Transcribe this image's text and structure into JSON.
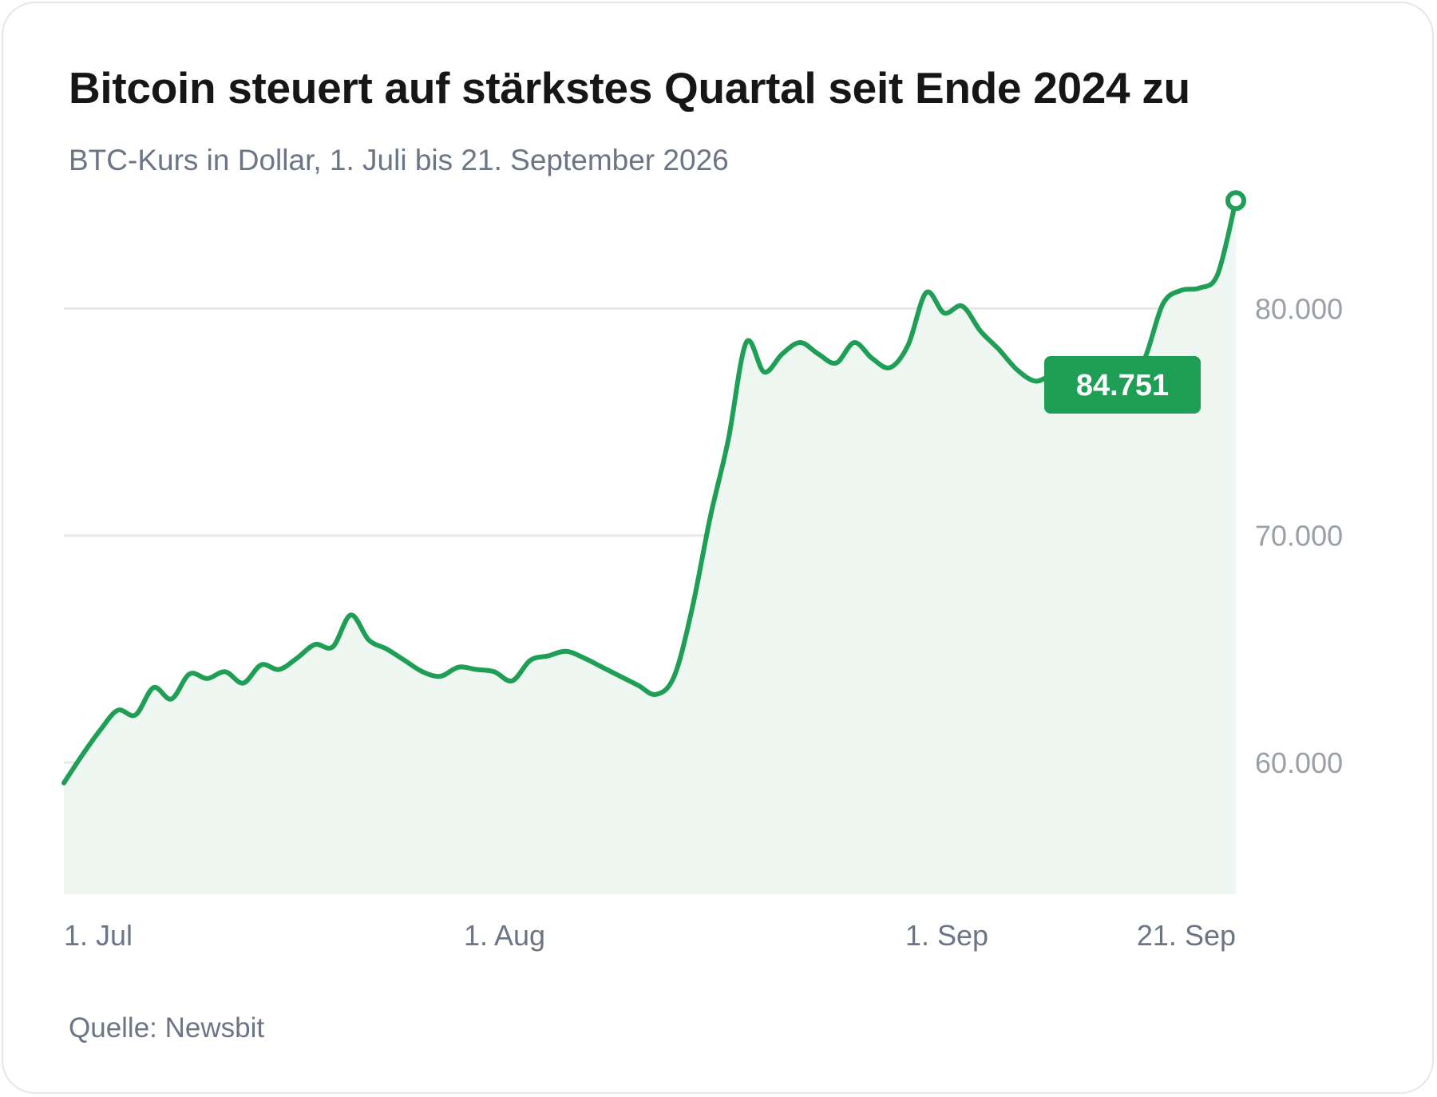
{
  "title": "Bitcoin steuert auf stärkstes Quartal seit Ende 2024 zu",
  "subtitle": "BTC-Kurs in Dollar, 1. Juli bis 21. September 2026",
  "source": "Quelle: Newsbit",
  "colors": {
    "line": "#1f9e55",
    "area": "#eef7f1",
    "grid": "#e8e8e8",
    "badge": "#1f9e55"
  },
  "chart_data": {
    "type": "area",
    "title": "Bitcoin steuert auf stärkstes Quartal seit Ende 2024 zu",
    "subtitle": "BTC-Kurs in Dollar, 1. Juli bis 21. September 2026",
    "xlabel": "",
    "ylabel": "",
    "x_ticks": [
      {
        "label": "1. Jul",
        "date": "2026-07-01"
      },
      {
        "label": "1. Aug",
        "date": "2026-08-01"
      },
      {
        "label": "1. Sep",
        "date": "2026-09-01"
      },
      {
        "label": "21. Sep",
        "date": "2026-09-21"
      }
    ],
    "y_ticks": [
      {
        "label": "60.000",
        "value": 60000
      },
      {
        "label": "70.000",
        "value": 70000
      },
      {
        "label": "80.000",
        "value": 80000
      }
    ],
    "ylim": [
      54200,
      85500
    ],
    "xlim": [
      "2026-07-01",
      "2026-09-21"
    ],
    "grid": "horizontal",
    "last_value_label": "84.751",
    "series": [
      {
        "values": [
          [
            "2026-07-01",
            59100
          ],
          [
            "2026-07-02",
            60300
          ],
          [
            "2026-07-03",
            61400
          ],
          [
            "2026-07-04",
            62300
          ],
          [
            "2026-07-05",
            62100
          ],
          [
            "2026-07-06",
            63300
          ],
          [
            "2026-07-07",
            62800
          ],
          [
            "2026-07-08",
            63900
          ],
          [
            "2026-07-09",
            63700
          ],
          [
            "2026-07-10",
            64000
          ],
          [
            "2026-07-11",
            63500
          ],
          [
            "2026-07-12",
            64300
          ],
          [
            "2026-07-13",
            64100
          ],
          [
            "2026-07-14",
            64600
          ],
          [
            "2026-07-15",
            65200
          ],
          [
            "2026-07-16",
            65100
          ],
          [
            "2026-07-17",
            66500
          ],
          [
            "2026-07-18",
            65400
          ],
          [
            "2026-07-19",
            65000
          ],
          [
            "2026-07-20",
            64500
          ],
          [
            "2026-07-21",
            64000
          ],
          [
            "2026-07-22",
            63800
          ],
          [
            "2026-07-23",
            64200
          ],
          [
            "2026-07-24",
            64100
          ],
          [
            "2026-07-25",
            64000
          ],
          [
            "2026-07-26",
            63600
          ],
          [
            "2026-07-27",
            64500
          ],
          [
            "2026-07-28",
            64700
          ],
          [
            "2026-07-29",
            64900
          ],
          [
            "2026-07-30",
            64600
          ],
          [
            "2026-07-31",
            64200
          ],
          [
            "2026-08-01",
            63800
          ],
          [
            "2026-08-02",
            63400
          ],
          [
            "2026-08-03",
            63000
          ],
          [
            "2026-08-04",
            63800
          ],
          [
            "2026-08-05",
            66800
          ],
          [
            "2026-08-06",
            70800
          ],
          [
            "2026-08-07",
            74200
          ],
          [
            "2026-08-08",
            78500
          ],
          [
            "2026-08-09",
            77200
          ],
          [
            "2026-08-10",
            78000
          ],
          [
            "2026-08-11",
            78500
          ],
          [
            "2026-08-12",
            78000
          ],
          [
            "2026-08-13",
            77600
          ],
          [
            "2026-08-14",
            78500
          ],
          [
            "2026-08-15",
            77800
          ],
          [
            "2026-08-16",
            77400
          ],
          [
            "2026-08-17",
            78400
          ],
          [
            "2026-08-18",
            80700
          ],
          [
            "2026-08-19",
            79800
          ],
          [
            "2026-08-20",
            80100
          ],
          [
            "2026-08-21",
            79000
          ],
          [
            "2026-08-22",
            78200
          ],
          [
            "2026-08-23",
            77300
          ],
          [
            "2026-08-24",
            76800
          ],
          [
            "2026-08-25",
            77000
          ],
          [
            "2026-08-26",
            76200
          ],
          [
            "2026-08-27",
            76500
          ],
          [
            "2026-08-28",
            75700
          ],
          [
            "2026-08-29",
            76800
          ],
          [
            "2026-08-30",
            77800
          ],
          [
            "2026-08-31",
            80200
          ],
          [
            "2026-09-01",
            80800
          ],
          [
            "2026-09-02",
            80900
          ],
          [
            "2026-09-03",
            81500
          ],
          [
            "2026-09-04",
            84751
          ]
        ]
      }
    ]
  }
}
